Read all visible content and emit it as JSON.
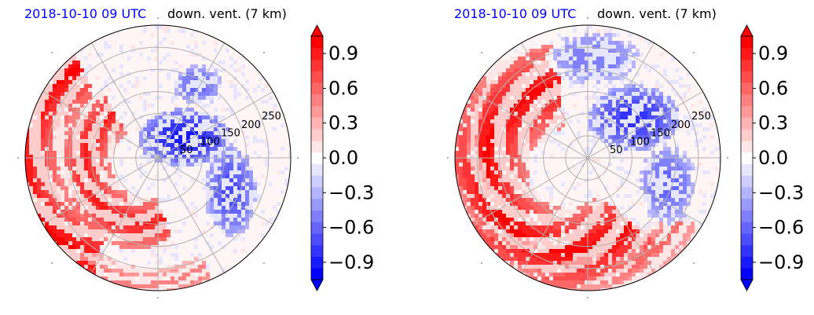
{
  "chart_data": [
    {
      "type": "heatmap",
      "projection": "polar",
      "title_left": "2018-10-10 09 UTC",
      "title_right": "down. vent. (7 km)",
      "radial_ticks": [
        "50",
        "100",
        "150",
        "200",
        "250"
      ],
      "radial_tick_values": [
        50,
        100,
        150,
        200,
        250
      ],
      "r_max": 300,
      "grid": true,
      "colormap": "bwr",
      "colors": {
        "positive": "#ff0000",
        "negative": "#0000ff",
        "neutral": "#ffffff"
      },
      "colorbar": {
        "range": [
          -1.05,
          1.05
        ],
        "extend": "both",
        "tick_values": [
          0.9,
          0.6,
          0.3,
          0.0,
          -0.3,
          -0.6,
          -0.9
        ],
        "tick_labels": [
          "0.9",
          "0.6",
          "0.3",
          "0.0",
          "−0.3",
          "−0.6",
          "−0.9"
        ]
      },
      "pattern": {
        "red_arcs": [
          {
            "cx": -0.25,
            "cy": 0.02,
            "r": 0.78,
            "a1": 115,
            "a2": 255,
            "w": 0.28,
            "v": 1.0
          },
          {
            "cx": -0.1,
            "cy": 0.05,
            "r": 0.45,
            "a1": 120,
            "a2": 290,
            "w": 0.2,
            "v": 0.9
          },
          {
            "cx": -0.05,
            "cy": 0.1,
            "r": 0.85,
            "a1": 230,
            "a2": 300,
            "w": 0.12,
            "v": 0.55
          }
        ],
        "blue_blobs": [
          {
            "cx": 0.2,
            "cy": -0.15,
            "rx": 0.35,
            "ry": 0.22,
            "v": -0.9
          },
          {
            "cx": 0.55,
            "cy": 0.25,
            "rx": 0.2,
            "ry": 0.35,
            "v": -0.7
          },
          {
            "cx": 0.3,
            "cy": -0.55,
            "rx": 0.2,
            "ry": 0.15,
            "v": -0.6
          }
        ],
        "seed": 7
      }
    },
    {
      "type": "heatmap",
      "projection": "polar",
      "title_left": "2018-10-10 09 UTC",
      "title_right": "down. vent. (7 km)",
      "radial_ticks": [
        "50",
        "100",
        "150",
        "200",
        "250"
      ],
      "radial_tick_values": [
        50,
        100,
        150,
        200,
        250
      ],
      "r_max": 300,
      "grid": true,
      "colormap": "bwr",
      "colors": {
        "positive": "#ff0000",
        "negative": "#0000ff",
        "neutral": "#ffffff"
      },
      "colorbar": {
        "range": [
          -1.05,
          1.05
        ],
        "extend": "both",
        "tick_values": [
          0.9,
          0.6,
          0.3,
          0.0,
          -0.3,
          -0.6,
          -0.9
        ],
        "tick_labels": [
          "0.9",
          "0.6",
          "0.3",
          "0.0",
          "−0.3",
          "−0.6",
          "−0.9"
        ]
      },
      "pattern": {
        "red_arcs": [
          {
            "cx": -0.15,
            "cy": 0.08,
            "r": 0.62,
            "a1": 95,
            "a2": 320,
            "w": 0.32,
            "v": 1.0
          },
          {
            "cx": -0.05,
            "cy": 0.0,
            "r": 0.88,
            "a1": 140,
            "a2": 330,
            "w": 0.16,
            "v": 0.6
          }
        ],
        "blue_blobs": [
          {
            "cx": 0.05,
            "cy": -0.75,
            "rx": 0.35,
            "ry": 0.2,
            "v": -0.55
          },
          {
            "cx": 0.35,
            "cy": -0.3,
            "rx": 0.35,
            "ry": 0.25,
            "v": -0.8
          },
          {
            "cx": 0.6,
            "cy": 0.2,
            "rx": 0.22,
            "ry": 0.3,
            "v": -0.6
          }
        ],
        "seed": 13
      }
    }
  ]
}
